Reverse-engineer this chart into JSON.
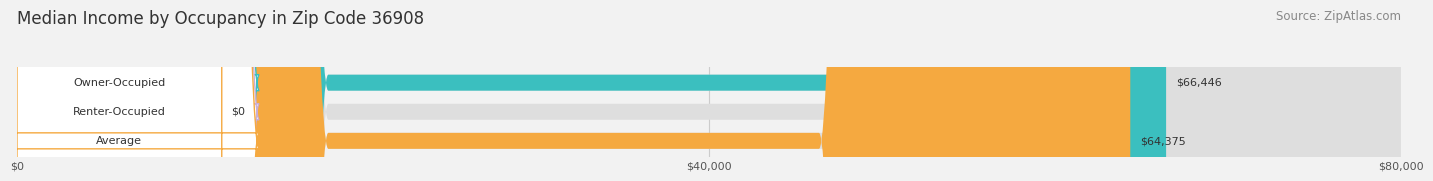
{
  "title": "Median Income by Occupancy in Zip Code 36908",
  "source": "Source: ZipAtlas.com",
  "categories": [
    "Owner-Occupied",
    "Renter-Occupied",
    "Average"
  ],
  "values": [
    66446,
    0,
    64375
  ],
  "bar_colors": [
    "#3bbfbf",
    "#c9aed6",
    "#f5a940"
  ],
  "value_labels": [
    "$66,446",
    "$0",
    "$64,375"
  ],
  "xmax": 80000,
  "xticks": [
    0,
    40000,
    80000
  ],
  "xtick_labels": [
    "$0",
    "$40,000",
    "$80,000"
  ],
  "title_fontsize": 12,
  "source_fontsize": 8.5,
  "bar_height": 0.55
}
